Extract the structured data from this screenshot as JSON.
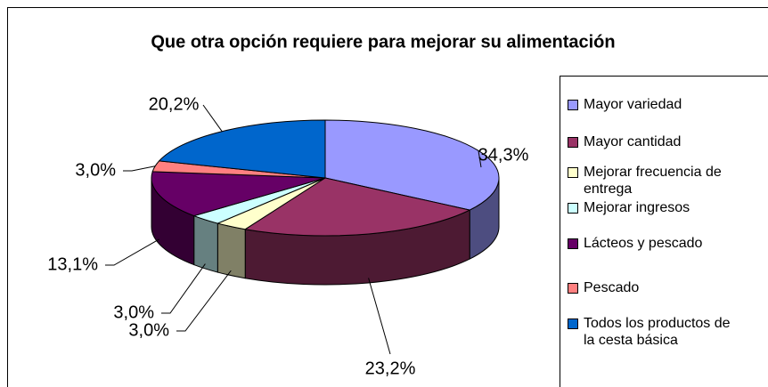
{
  "chart_data": {
    "type": "pie3d",
    "title": "Que otra opción requiere para mejorar su alimentación",
    "categories": [
      "Mayor variedad",
      "Mayor cantidad",
      "Mejorar frecuencia de entrega",
      "Mejorar ingresos",
      "Lácteos y pescado",
      "Pescado",
      "Todos los productos de la cesta básica"
    ],
    "values": [
      34.3,
      23.2,
      3.0,
      3.0,
      13.1,
      3.0,
      20.2
    ],
    "value_labels": [
      "34,3%",
      "23,2%",
      "3,0%",
      "3,0%",
      "13,1%",
      "3,0%",
      "20,2%"
    ],
    "colors": [
      "#9999ff",
      "#993366",
      "#ffffcc",
      "#ccffff",
      "#660066",
      "#ff8080",
      "#0066cc"
    ],
    "legend": "right"
  }
}
